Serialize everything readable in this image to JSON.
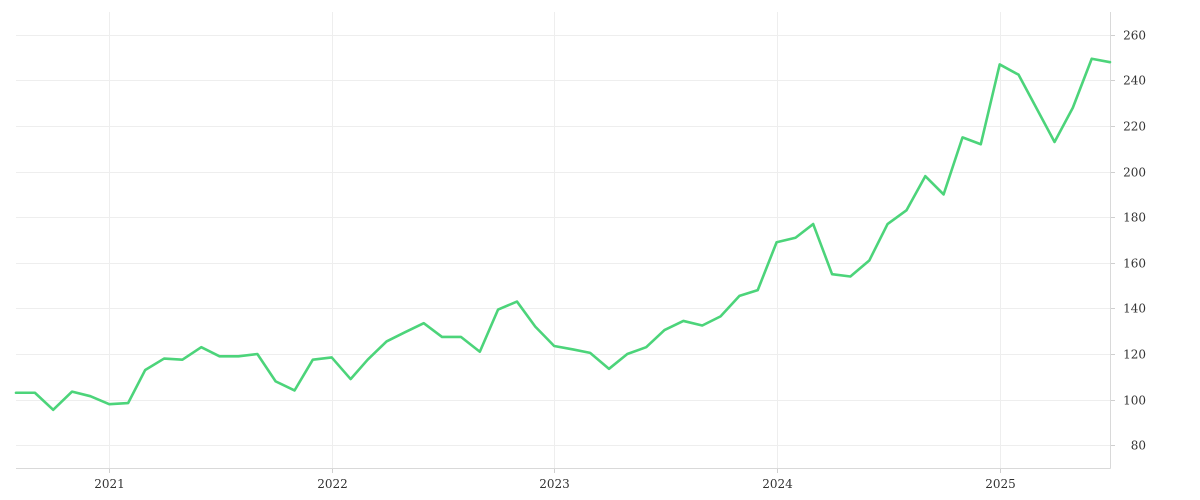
{
  "colors": {
    "series": "#4cd47a",
    "grid": "#eeeeee",
    "axis": "#d9d9d9",
    "text": "#333333"
  },
  "chart_data": {
    "type": "line",
    "title": "",
    "xlabel": "",
    "ylabel": "",
    "grid": true,
    "legend": "none",
    "y_axis_side": "right",
    "xlim": [
      "2020-08-01",
      "2025-07-01"
    ],
    "ylim": [
      70,
      270
    ],
    "x_ticks": [
      {
        "value": "2021-01-01",
        "label": "2021"
      },
      {
        "value": "2022-01-01",
        "label": "2022"
      },
      {
        "value": "2023-01-01",
        "label": "2023"
      },
      {
        "value": "2024-01-01",
        "label": "2024"
      },
      {
        "value": "2025-01-01",
        "label": "2025"
      }
    ],
    "y_ticks": [
      80,
      100,
      120,
      140,
      160,
      180,
      200,
      220,
      240,
      260
    ],
    "series": [
      {
        "x": [
          "2020-08-01",
          "2020-09-01",
          "2020-10-01",
          "2020-11-01",
          "2020-12-01",
          "2021-01-01",
          "2021-02-01",
          "2021-03-01",
          "2021-04-01",
          "2021-05-01",
          "2021-06-01",
          "2021-07-01",
          "2021-08-01",
          "2021-09-01",
          "2021-10-01",
          "2021-11-01",
          "2021-12-01",
          "2022-01-01",
          "2022-02-01",
          "2022-03-01",
          "2022-04-01",
          "2022-05-01",
          "2022-06-01",
          "2022-07-01",
          "2022-08-01",
          "2022-09-01",
          "2022-10-01",
          "2022-11-01",
          "2022-12-01",
          "2023-01-01",
          "2023-02-01",
          "2023-03-01",
          "2023-04-01",
          "2023-05-01",
          "2023-06-01",
          "2023-07-01",
          "2023-08-01",
          "2023-09-01",
          "2023-10-01",
          "2023-11-01",
          "2023-12-01",
          "2024-01-01",
          "2024-02-01",
          "2024-03-01",
          "2024-04-01",
          "2024-05-01",
          "2024-06-01",
          "2024-07-01",
          "2024-08-01",
          "2024-09-01",
          "2024-10-01",
          "2024-11-01",
          "2024-12-01",
          "2025-01-01",
          "2025-02-01",
          "2025-03-01",
          "2025-04-01",
          "2025-05-01",
          "2025-06-01",
          "2025-07-01"
        ],
        "values": [
          103,
          103,
          95.5,
          103.5,
          101.5,
          98,
          98.5,
          113,
          118,
          117.5,
          123,
          119,
          119,
          120,
          108,
          104,
          117.5,
          118.5,
          109,
          117.5,
          125.5,
          129.5,
          133.5,
          127.5,
          127.5,
          121,
          139.5,
          143,
          132,
          123.5,
          122,
          120.5,
          113.5,
          120,
          123,
          130.5,
          134.5,
          132.5,
          136.5,
          145.5,
          148,
          169,
          171,
          177,
          155,
          154,
          161,
          177,
          183,
          198,
          190,
          215,
          212,
          247,
          242.5,
          228.5,
          213,
          228,
          249.5,
          248
        ]
      }
    ]
  }
}
